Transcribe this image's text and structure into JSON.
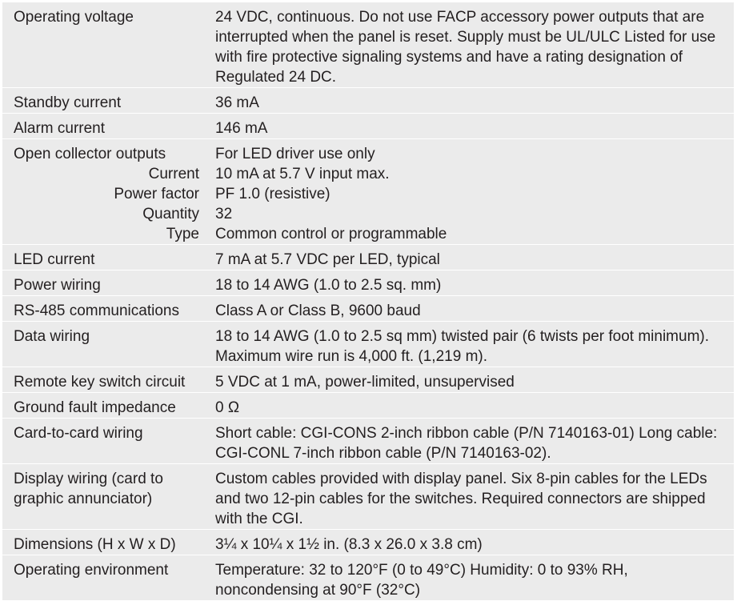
{
  "rows": [
    {
      "label": "Operating voltage",
      "value": "24 VDC, continuous. Do not use FACP accessory power outputs that are interrupted when the panel is reset. Supply must be UL/ULC Listed for use with fire protective signaling systems and have a rating designation of Regulated 24 DC."
    },
    {
      "label": "Standby current",
      "value": "36 mA"
    },
    {
      "label": "Alarm current",
      "value": "146 mA"
    },
    {
      "label": "Open collector outputs",
      "value": "For LED driver use only",
      "sub": [
        {
          "label": "Current",
          "value": "10 mA at 5.7 V input max."
        },
        {
          "label": "Power factor",
          "value": "PF 1.0 (resistive)"
        },
        {
          "label": "Quantity",
          "value": "32"
        },
        {
          "label": "Type",
          "value": "Common control or programmable"
        }
      ]
    },
    {
      "label": "LED current",
      "value": "7 mA at 5.7 VDC per LED, typical"
    },
    {
      "label": "Power wiring",
      "value": "18 to 14 AWG (1.0 to 2.5 sq. mm)"
    },
    {
      "label": "RS-485 communications",
      "value": "Class A or Class B, 9600 baud"
    },
    {
      "label": "Data wiring",
      "value": "18 to 14 AWG (1.0 to 2.5 sq mm) twisted pair (6 twists per foot minimum).",
      "value2": "Maximum wire run is 4,000 ft. (1,219 m)."
    },
    {
      "label": "Remote key switch circuit",
      "value": "5 VDC at 1 mA, power-limited, unsupervised"
    },
    {
      "label": "Ground fault impedance",
      "value": "0 Ω"
    },
    {
      "label": "Card-to-card wiring",
      "value": "Short cable: CGI-CONS 2-inch ribbon cable (P/N 7140163-01) Long cable: CGI-CONL 7-inch ribbon cable (P/N 7140163-02)."
    },
    {
      "label": "Display wiring (card to graphic annunciator)",
      "value": "Custom cables provided with display panel. Six 8-pin cables for the LEDs and two 12-pin cables for the switches. Required connectors are shipped with the CGI."
    },
    {
      "label": "Dimensions (H x W x D)",
      "value": "3¼ x 10¼ x 1½ in. (8.3 x 26.0 x 3.8 cm)"
    },
    {
      "label": "Operating environment",
      "value": "Temperature: 32 to 120°F (0 to 49°C) Humidity: 0 to 93% RH, noncondensing at 90°F (32°C)"
    }
  ]
}
